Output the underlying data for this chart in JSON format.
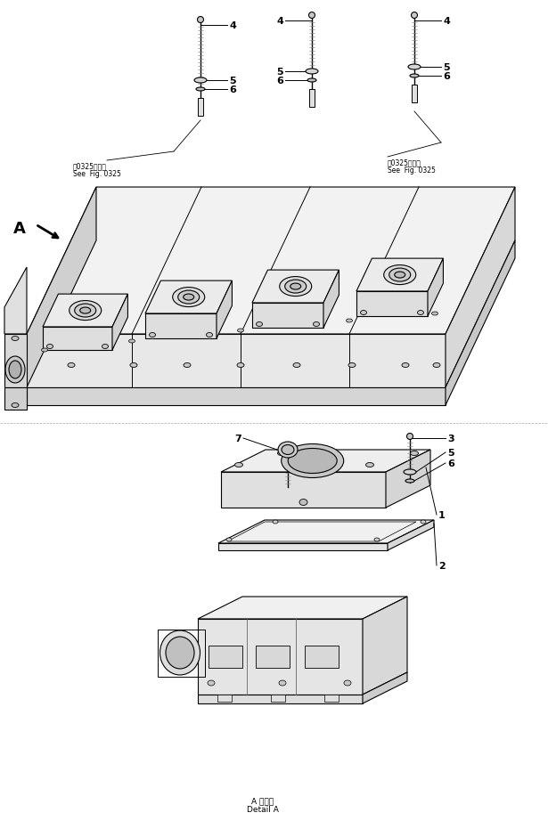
{
  "background_color": "#ffffff",
  "line_color": "#000000",
  "fig_width": 6.15,
  "fig_height": 9.31,
  "dpi": 100,
  "annotations": {
    "see_fig_0325_left_line1": "第0325図参照",
    "see_fig_0325_left_line2": "See  Fig. 0325",
    "see_fig_0325_right_line1": "第0325図参照",
    "see_fig_0325_right_line2": "See  Fig. 0325",
    "detail_a_line1": "A 詳細図",
    "detail_a_line2": "Detail A"
  }
}
